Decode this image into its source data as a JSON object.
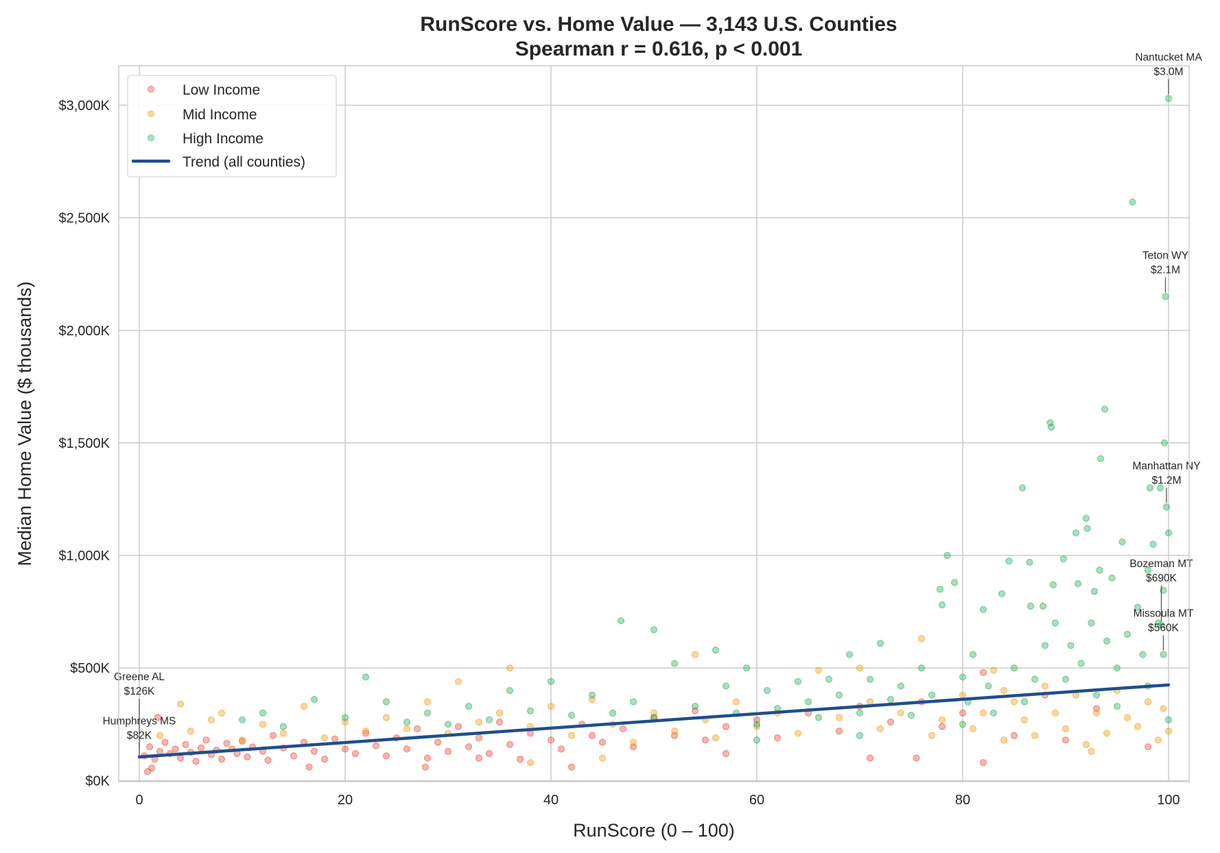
{
  "chart_data": {
    "type": "scatter",
    "title": "RunScore vs. Home Value — 3,143 U.S. Counties",
    "subtitle": "Spearman r = 0.616, p < 0.001",
    "xlabel": "RunScore (0 – 100)",
    "ylabel": "Median Home Value ($ thousands)",
    "xlim": [
      -2,
      102
    ],
    "ylim": [
      -5,
      3175
    ],
    "xticks": [
      0,
      20,
      40,
      60,
      80,
      100
    ],
    "xtick_labels": [
      "0",
      "20",
      "40",
      "60",
      "80",
      "100"
    ],
    "yticks": [
      0,
      500,
      1000,
      1500,
      2000,
      2500,
      3000
    ],
    "ytick_labels": [
      "$0K",
      "$500K",
      "$1,000K",
      "$1,500K",
      "$2,000K",
      "$2,500K",
      "$3,000K"
    ],
    "grid": true,
    "legend_position": "top-left",
    "series": [
      {
        "name": "Low Income",
        "color": "#e74c3c",
        "points": [
          [
            0.5,
            110
          ],
          [
            1,
            150
          ],
          [
            1.5,
            95
          ],
          [
            2,
            130
          ],
          [
            2.5,
            170
          ],
          [
            3,
            120
          ],
          [
            3.5,
            140
          ],
          [
            4,
            100
          ],
          [
            4.5,
            160
          ],
          [
            5,
            125
          ],
          [
            5.5,
            85
          ],
          [
            6,
            145
          ],
          [
            6.5,
            180
          ],
          [
            7,
            115
          ],
          [
            7.5,
            135
          ],
          [
            8,
            95
          ],
          [
            8.5,
            165
          ],
          [
            9,
            140
          ],
          [
            9.5,
            120
          ],
          [
            10,
            175
          ],
          [
            10.5,
            105
          ],
          [
            11,
            150
          ],
          [
            12,
            130
          ],
          [
            12.5,
            90
          ],
          [
            13,
            200
          ],
          [
            14,
            145
          ],
          [
            15,
            110
          ],
          [
            16,
            170
          ],
          [
            17,
            130
          ],
          [
            18,
            95
          ],
          [
            19,
            185
          ],
          [
            20,
            140
          ],
          [
            21,
            120
          ],
          [
            22,
            210
          ],
          [
            23,
            155
          ],
          [
            24,
            110
          ],
          [
            25,
            190
          ],
          [
            26,
            140
          ],
          [
            27,
            230
          ],
          [
            28,
            100
          ],
          [
            29,
            170
          ],
          [
            30,
            130
          ],
          [
            31,
            240
          ],
          [
            32,
            150
          ],
          [
            33,
            190
          ],
          [
            34,
            120
          ],
          [
            35,
            260
          ],
          [
            36,
            160
          ],
          [
            37,
            95
          ],
          [
            38,
            210
          ],
          [
            40,
            180
          ],
          [
            41,
            140
          ],
          [
            42,
            60
          ],
          [
            43,
            250
          ],
          [
            44,
            200
          ],
          [
            45,
            170
          ],
          [
            47,
            230
          ],
          [
            48,
            150
          ],
          [
            50,
            280
          ],
          [
            52,
            200
          ],
          [
            54,
            310
          ],
          [
            55,
            180
          ],
          [
            57,
            240
          ],
          [
            60,
            270
          ],
          [
            62,
            190
          ],
          [
            65,
            300
          ],
          [
            68,
            220
          ],
          [
            70,
            330
          ],
          [
            73,
            260
          ],
          [
            76,
            350
          ],
          [
            78,
            240
          ],
          [
            80,
            300
          ],
          [
            82,
            480
          ],
          [
            85,
            200
          ],
          [
            88,
            380
          ],
          [
            90,
            180
          ],
          [
            93,
            320
          ],
          [
            98,
            150
          ],
          [
            1.8,
            280
          ],
          [
            0.8,
            40
          ],
          [
            1.2,
            55
          ],
          [
            16.5,
            60
          ],
          [
            27.8,
            60
          ],
          [
            33,
            100
          ],
          [
            57,
            120
          ],
          [
            71,
            100
          ],
          [
            75.5,
            100
          ],
          [
            82,
            80
          ]
        ]
      },
      {
        "name": "Mid Income",
        "color": "#f39c12",
        "points": [
          [
            2,
            200
          ],
          [
            4,
            340
          ],
          [
            5,
            220
          ],
          [
            7,
            270
          ],
          [
            8,
            300
          ],
          [
            10,
            180
          ],
          [
            12,
            250
          ],
          [
            14,
            210
          ],
          [
            16,
            330
          ],
          [
            18,
            190
          ],
          [
            20,
            260
          ],
          [
            22,
            220
          ],
          [
            24,
            280
          ],
          [
            26,
            230
          ],
          [
            28,
            350
          ],
          [
            30,
            210
          ],
          [
            31,
            440
          ],
          [
            33,
            260
          ],
          [
            35,
            300
          ],
          [
            36,
            500
          ],
          [
            38,
            240
          ],
          [
            40,
            330
          ],
          [
            42,
            200
          ],
          [
            44,
            360
          ],
          [
            46,
            250
          ],
          [
            48,
            170
          ],
          [
            50,
            300
          ],
          [
            52,
            220
          ],
          [
            54,
            560
          ],
          [
            55,
            270
          ],
          [
            56,
            190
          ],
          [
            58,
            350
          ],
          [
            60,
            240
          ],
          [
            62,
            300
          ],
          [
            64,
            210
          ],
          [
            66,
            490
          ],
          [
            68,
            280
          ],
          [
            70,
            500
          ],
          [
            71,
            350
          ],
          [
            72,
            230
          ],
          [
            74,
            300
          ],
          [
            76,
            630
          ],
          [
            77,
            200
          ],
          [
            78,
            270
          ],
          [
            80,
            380
          ],
          [
            81,
            230
          ],
          [
            82,
            300
          ],
          [
            83,
            490
          ],
          [
            84,
            180
          ],
          [
            85,
            350
          ],
          [
            86,
            270
          ],
          [
            87,
            200
          ],
          [
            88,
            420
          ],
          [
            89,
            300
          ],
          [
            90,
            230
          ],
          [
            91,
            380
          ],
          [
            92,
            160
          ],
          [
            93,
            300
          ],
          [
            94,
            210
          ],
          [
            95,
            400
          ],
          [
            96,
            280
          ],
          [
            97,
            240
          ],
          [
            98,
            350
          ],
          [
            99,
            180
          ],
          [
            99.5,
            320
          ],
          [
            100,
            220
          ],
          [
            84,
            400
          ],
          [
            92.5,
            130
          ],
          [
            45,
            100
          ],
          [
            38,
            80
          ]
        ]
      },
      {
        "name": "High Income",
        "color": "#27ae60",
        "points": [
          [
            10,
            270
          ],
          [
            12,
            300
          ],
          [
            14,
            240
          ],
          [
            17,
            360
          ],
          [
            20,
            280
          ],
          [
            22,
            460
          ],
          [
            24,
            350
          ],
          [
            26,
            260
          ],
          [
            28,
            300
          ],
          [
            30,
            250
          ],
          [
            32,
            330
          ],
          [
            34,
            270
          ],
          [
            36,
            400
          ],
          [
            38,
            310
          ],
          [
            40,
            440
          ],
          [
            42,
            290
          ],
          [
            44,
            380
          ],
          [
            46,
            300
          ],
          [
            46.8,
            710
          ],
          [
            48,
            350
          ],
          [
            50,
            670
          ],
          [
            50,
            280
          ],
          [
            52,
            520
          ],
          [
            54,
            330
          ],
          [
            56,
            580
          ],
          [
            57,
            420
          ],
          [
            58,
            300
          ],
          [
            59,
            500
          ],
          [
            60,
            250
          ],
          [
            61,
            400
          ],
          [
            62,
            320
          ],
          [
            64,
            440
          ],
          [
            65,
            350
          ],
          [
            66,
            280
          ],
          [
            67,
            450
          ],
          [
            68,
            380
          ],
          [
            69,
            560
          ],
          [
            70,
            300
          ],
          [
            71,
            450
          ],
          [
            72,
            610
          ],
          [
            73,
            360
          ],
          [
            74,
            420
          ],
          [
            75,
            290
          ],
          [
            76,
            500
          ],
          [
            77,
            380
          ],
          [
            77.8,
            850
          ],
          [
            78,
            780
          ],
          [
            78.5,
            1000
          ],
          [
            79.2,
            880
          ],
          [
            80,
            460
          ],
          [
            80.5,
            350
          ],
          [
            81,
            560
          ],
          [
            82,
            760
          ],
          [
            82.5,
            420
          ],
          [
            83,
            300
          ],
          [
            83.8,
            830
          ],
          [
            84.5,
            975
          ],
          [
            85,
            500
          ],
          [
            85.8,
            1300
          ],
          [
            86,
            350
          ],
          [
            86.5,
            970
          ],
          [
            86.6,
            775
          ],
          [
            87,
            450
          ],
          [
            87.8,
            775
          ],
          [
            88,
            600
          ],
          [
            88.5,
            1590
          ],
          [
            88.6,
            1570
          ],
          [
            88.8,
            870
          ],
          [
            89,
            700
          ],
          [
            89.8,
            985
          ],
          [
            90,
            450
          ],
          [
            90.5,
            600
          ],
          [
            91,
            1100
          ],
          [
            91.2,
            875
          ],
          [
            91.5,
            520
          ],
          [
            92,
            1165
          ],
          [
            92.1,
            1120
          ],
          [
            92.5,
            700
          ],
          [
            92.8,
            840
          ],
          [
            93,
            380
          ],
          [
            93.3,
            935
          ],
          [
            93.4,
            1430
          ],
          [
            93.8,
            1650
          ],
          [
            94,
            620
          ],
          [
            94.5,
            900
          ],
          [
            95,
            500
          ],
          [
            95.5,
            1060
          ],
          [
            96,
            650
          ],
          [
            96.5,
            2570
          ],
          [
            97,
            770
          ],
          [
            97.5,
            560
          ],
          [
            98,
            935
          ],
          [
            98.2,
            1300
          ],
          [
            98.5,
            1050
          ],
          [
            99,
            700
          ],
          [
            99.2,
            1300
          ],
          [
            99.3,
            690
          ],
          [
            99.5,
            845
          ],
          [
            99.5,
            560
          ],
          [
            99.6,
            1500
          ],
          [
            99.7,
            2150
          ],
          [
            99.8,
            1215
          ],
          [
            100,
            1100
          ],
          [
            100,
            3030
          ],
          [
            100,
            270
          ],
          [
            60,
            180
          ],
          [
            70,
            200
          ],
          [
            80,
            250
          ],
          [
            95,
            330
          ],
          [
            98,
            420
          ]
        ]
      }
    ],
    "trend": {
      "name": "Trend (all counties)",
      "color": "#1f4e8c",
      "x": [
        0,
        100
      ],
      "y": [
        105,
        425
      ]
    },
    "annotations": [
      {
        "name": "Nantucket MA",
        "value": "$3.0M",
        "x": 100,
        "y": 3030
      },
      {
        "name": "Teton WY",
        "value": "$2.1M",
        "x": 99.7,
        "y": 2150
      },
      {
        "name": "Manhattan NY",
        "value": "$1.2M",
        "x": 99.8,
        "y": 1215
      },
      {
        "name": "Bozeman MT",
        "value": "$690K",
        "x": 99.3,
        "y": 690
      },
      {
        "name": "Missoula MT",
        "value": "$560K",
        "x": 99.5,
        "y": 560
      },
      {
        "name": "Greene AL",
        "value": "$126K",
        "x": 0,
        "y": 126
      },
      {
        "name": "Humphreys MS",
        "value": "$82K",
        "x": 0,
        "y": 82
      }
    ]
  }
}
